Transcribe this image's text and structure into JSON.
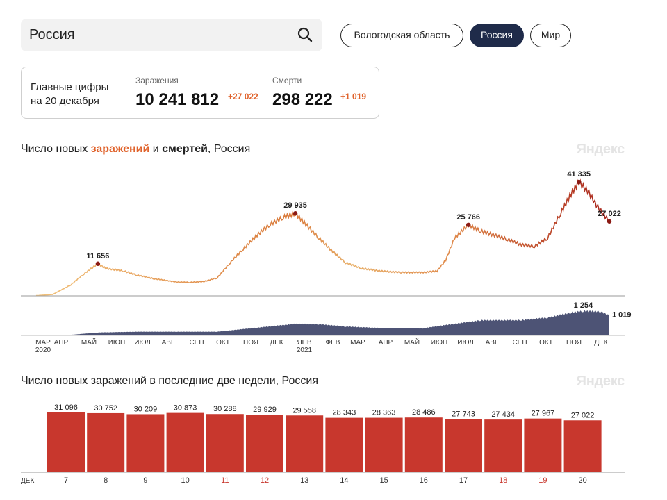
{
  "search": {
    "value": "Россия"
  },
  "regions": [
    {
      "label": "Вологодская область",
      "active": false
    },
    {
      "label": "Россия",
      "active": true
    },
    {
      "label": "Мир",
      "active": false
    }
  ],
  "summary": {
    "title_line1": "Главные цифры",
    "title_line2": "на 20 декабря",
    "infections_label": "Заражения",
    "infections_value": "10 241 812",
    "infections_delta": "+27 022",
    "deaths_label": "Смерти",
    "deaths_value": "298 222",
    "deaths_delta": "+1 019"
  },
  "chart1_heading": {
    "prefix": "Число новых ",
    "orange": "заражений",
    "middle": " и ",
    "bold": "смертей",
    "suffix": ", Россия"
  },
  "chart2_heading": "Число новых заражений в последние две недели, Россия",
  "watermark": "Яндекс",
  "colors": {
    "accent": "#e0632c",
    "bar": "#c8372d",
    "deaths": "#434a6e",
    "chip_active": "#1f2b4a",
    "weekend": "#c8372d"
  },
  "chart_data": [
    {
      "type": "line",
      "title": "Число новых заражений и смертей, Россия",
      "series": [
        {
          "key": "infections",
          "x": [
            "2020-03-01",
            "2020-03-20",
            "2020-04-10",
            "2020-04-25",
            "2020-05-11",
            "2020-05-20",
            "2020-06-10",
            "2020-06-25",
            "2020-07-15",
            "2020-08-10",
            "2020-08-25",
            "2020-09-10",
            "2020-09-25",
            "2020-10-10",
            "2020-10-25",
            "2020-11-10",
            "2020-11-25",
            "2020-12-10",
            "2020-12-24",
            "2021-01-05",
            "2021-01-20",
            "2021-02-05",
            "2021-02-20",
            "2021-03-10",
            "2021-04-01",
            "2021-04-25",
            "2021-05-20",
            "2021-06-05",
            "2021-06-15",
            "2021-06-25",
            "2021-07-11",
            "2021-07-25",
            "2021-08-10",
            "2021-08-25",
            "2021-09-10",
            "2021-09-25",
            "2021-10-10",
            "2021-10-25",
            "2021-11-06",
            "2021-11-15",
            "2021-11-25",
            "2021-12-05",
            "2021-12-12",
            "2021-12-20"
          ],
          "values": [
            100,
            500,
            4000,
            8000,
            11656,
            10000,
            9000,
            7500,
            6200,
            5000,
            4900,
            5200,
            6500,
            12000,
            17000,
            22000,
            26000,
            28500,
            29935,
            26000,
            21000,
            16000,
            12000,
            10000,
            9000,
            8500,
            8500,
            9000,
            13000,
            21000,
            25766,
            23500,
            22000,
            20500,
            18500,
            18000,
            21000,
            30000,
            37000,
            41335,
            38000,
            33000,
            30000,
            27022
          ]
        },
        {
          "key": "deaths",
          "x": [
            "2020-03-01",
            "2020-04-10",
            "2020-05-11",
            "2020-06-25",
            "2020-08-10",
            "2020-09-25",
            "2020-11-10",
            "2020-12-24",
            "2021-01-20",
            "2021-02-20",
            "2021-04-01",
            "2021-05-20",
            "2021-06-25",
            "2021-07-25",
            "2021-09-10",
            "2021-10-10",
            "2021-11-06",
            "2021-11-20",
            "2021-12-10",
            "2021-12-20"
          ],
          "values": [
            0,
            30,
            150,
            190,
            190,
            190,
            400,
            600,
            580,
            460,
            380,
            370,
            600,
            780,
            790,
            920,
            1180,
            1254,
            1240,
            1019
          ]
        }
      ],
      "annotations": [
        "11 656",
        "29 935",
        "25 766",
        "41 335",
        "27 022",
        "1 254",
        "1 019"
      ],
      "x_tick_labels": [
        "МАР",
        "АПР",
        "МАЙ",
        "ИЮН",
        "ИЮЛ",
        "АВГ",
        "СЕН",
        "ОКТ",
        "НОЯ",
        "ДЕК",
        "ЯНВ",
        "ФЕВ",
        "МАР",
        "АПР",
        "МАЙ",
        "ИЮН",
        "ИЮЛ",
        "АВГ",
        "СЕН",
        "ОКТ",
        "НОЯ",
        "ДЕК"
      ],
      "year_labels": [
        "2020",
        "2021"
      ]
    },
    {
      "type": "bar",
      "title": "Число новых заражений в последние две недели, Россия",
      "month_label": "ДЕК",
      "categories": [
        "7",
        "8",
        "9",
        "10",
        "11",
        "12",
        "13",
        "14",
        "15",
        "16",
        "17",
        "18",
        "19",
        "20"
      ],
      "values": [
        31096,
        30752,
        30209,
        30873,
        30288,
        29929,
        29558,
        28343,
        28363,
        28486,
        27743,
        27434,
        27967,
        27022
      ],
      "value_labels": [
        "31 096",
        "30 752",
        "30 209",
        "30 873",
        "30 288",
        "29 929",
        "29 558",
        "28 343",
        "28 363",
        "28 486",
        "27 743",
        "27 434",
        "27 967",
        "27 022"
      ],
      "weekend": [
        false,
        false,
        false,
        false,
        true,
        true,
        false,
        false,
        false,
        false,
        false,
        true,
        true,
        false
      ],
      "ylim": [
        0,
        31096
      ]
    }
  ]
}
